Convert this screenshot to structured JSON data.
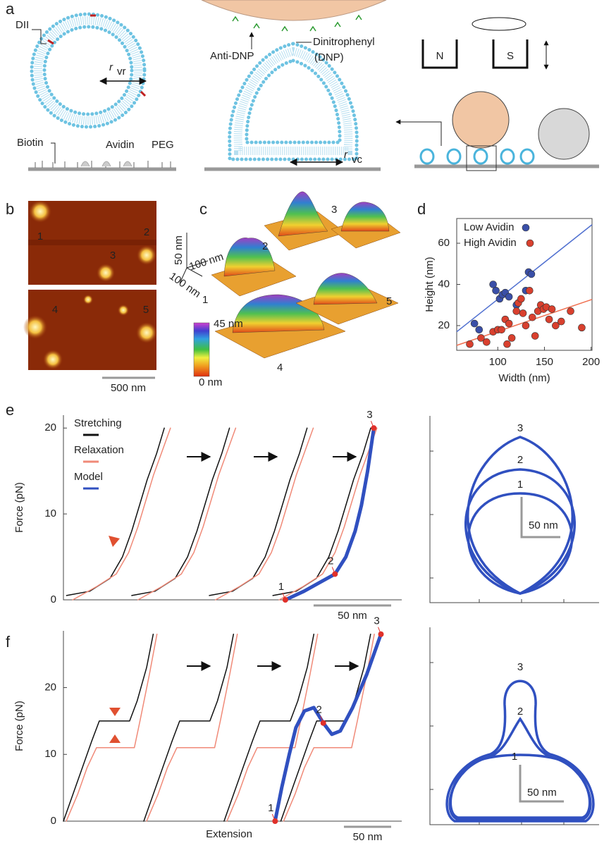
{
  "panel_labels": [
    "a",
    "b",
    "c",
    "d",
    "e",
    "f"
  ],
  "schematic": {
    "dii": "DII",
    "r_vr": "r",
    "r_vr_sub": "vr",
    "biotin": "Biotin",
    "avidin": "Avidin",
    "peg": "PEG",
    "anti_dnp": "Anti-DNP",
    "dinitrophenyl": "Dinitrophenyl",
    "dnp": "(DNP)",
    "r_vc": "r",
    "r_vc_sub": "vc",
    "magnet_n": "N",
    "magnet_s": "S"
  },
  "afm_images": {
    "labels": [
      "1",
      "2",
      "3",
      "4",
      "5"
    ],
    "scale_bar": "500 nm"
  },
  "surface_plot": {
    "z_scale": "50 nm",
    "xy_scale_1": "100 nm",
    "xy_scale_2": "100 nm",
    "labels": [
      "1",
      "2",
      "3",
      "4",
      "5"
    ],
    "colorbar_max": "45 nm",
    "colorbar_min": "0 nm"
  },
  "chart_data": [
    {
      "type": "scatter",
      "xlabel": "Width (nm)",
      "ylabel": "Height (nm)",
      "xlim": [
        56,
        201
      ],
      "ylim": [
        8,
        72
      ],
      "xticks": [
        100,
        150,
        200
      ],
      "yticks": [
        20,
        40,
        60
      ],
      "series": [
        {
          "name": "Low Avidin",
          "color": "#3a4fa8",
          "x": [
            75,
            80,
            95,
            98,
            102,
            105,
            108,
            112,
            120,
            130,
            133,
            136
          ],
          "values": [
            21,
            18,
            40,
            37,
            33,
            35,
            36,
            34,
            30,
            37,
            46,
            45
          ]
        },
        {
          "name": "High Avidin",
          "color": "#d9402e",
          "x": [
            70,
            82,
            88,
            95,
            100,
            104,
            108,
            112,
            115,
            120,
            122,
            127,
            130,
            134,
            137,
            140,
            143,
            146,
            149,
            152,
            155,
            158,
            162,
            168,
            178,
            190,
            110,
            125
          ],
          "values": [
            11,
            14,
            12,
            17,
            18,
            18,
            23,
            21,
            14,
            27,
            31,
            26,
            20,
            37,
            24,
            15,
            27,
            30,
            28,
            29,
            23,
            28,
            20,
            22,
            27,
            19,
            11,
            33
          ]
        }
      ],
      "fit_lines": [
        {
          "color": "#5070d0",
          "x": [
            56,
            201
          ],
          "values": [
            17,
            69
          ]
        },
        {
          "color": "#f07050",
          "x": [
            56,
            201
          ],
          "values": [
            10.4,
            32.7
          ]
        }
      ]
    },
    {
      "type": "line",
      "ylabel": "Force (pN)",
      "ylim": [
        0,
        21.5
      ],
      "yticks": [
        0,
        10,
        20
      ],
      "xlim": [
        0,
        218
      ],
      "series": [
        {
          "name": "Stretching",
          "color": "#111111",
          "width": 1.5,
          "x": [
            2,
            17,
            30,
            38,
            44,
            49,
            54,
            60,
            65,
            null,
            44,
            59,
            72,
            80,
            86,
            91,
            96,
            102,
            107,
            null,
            94,
            109,
            122,
            130,
            136,
            141,
            146,
            152,
            157,
            null,
            135,
            150,
            163,
            171,
            177,
            182,
            187,
            193,
            198
          ],
          "values": [
            0.5,
            1,
            2.5,
            5,
            8,
            11,
            14,
            17,
            20,
            null,
            0.5,
            1,
            2.5,
            5,
            8,
            11,
            14,
            17,
            20,
            null,
            0.5,
            1,
            2.5,
            5,
            8,
            11,
            14,
            17,
            20,
            null,
            0.5,
            1,
            2.5,
            5,
            8,
            11,
            14,
            17,
            20
          ]
        },
        {
          "name": "Relaxation",
          "color": "#f08a78",
          "width": 1.5,
          "x": [
            6,
            21,
            34,
            42,
            48,
            53,
            58,
            64,
            69,
            null,
            48,
            63,
            76,
            84,
            90,
            95,
            100,
            106,
            111,
            null,
            98,
            113,
            126,
            134,
            140,
            145,
            150,
            156,
            161,
            null,
            139,
            154,
            167,
            175,
            181,
            186,
            191,
            197,
            202
          ],
          "values": [
            0,
            1.5,
            3,
            5.5,
            8.5,
            11.5,
            14.5,
            17.5,
            20,
            null,
            0,
            1.5,
            3,
            5.5,
            8.5,
            11.5,
            14.5,
            17.5,
            20,
            null,
            0,
            1.5,
            3,
            5.5,
            8.5,
            11.5,
            14.5,
            17.5,
            20,
            null,
            0,
            1.5,
            3,
            5.5,
            8.5,
            11.5,
            14.5,
            17.5,
            20
          ]
        },
        {
          "name": "Model",
          "color": "#3050c0",
          "width": 5,
          "x": [
            143,
            155,
            165,
            175,
            182,
            188,
            192,
            196,
            200
          ],
          "values": [
            0,
            1,
            2,
            3,
            5,
            8,
            11,
            15,
            20
          ]
        }
      ],
      "points": {
        "x": [
          143,
          175,
          200
        ],
        "values": [
          0,
          3,
          20
        ],
        "labels": [
          "1",
          "2",
          "3"
        ],
        "color": "#e0302a"
      },
      "scale_bar": {
        "length": 50,
        "label": "50 nm"
      }
    },
    {
      "type": "line",
      "ylabel": "Force (pN)",
      "xlabel": "Extension",
      "ylim": [
        0,
        28.5
      ],
      "yticks": [
        0,
        10,
        20
      ],
      "xlim": [
        0,
        358
      ],
      "series": [
        {
          "color": "#111111",
          "width": 1.5,
          "x": [
            0,
            10,
            20,
            30,
            38,
            70,
            78,
            88,
            95,
            null,
            85,
            95,
            105,
            115,
            123,
            155,
            163,
            173,
            180,
            null,
            170,
            180,
            190,
            200,
            208,
            240,
            248,
            258,
            265,
            null,
            230,
            240,
            250,
            260,
            268,
            300,
            308,
            318,
            325
          ],
          "values": [
            0,
            4,
            8,
            12,
            15,
            15,
            18,
            23,
            28,
            null,
            0,
            4,
            8,
            12,
            15,
            15,
            18,
            23,
            28,
            null,
            0,
            4,
            8,
            12,
            15,
            15,
            18,
            23,
            28,
            null,
            0,
            4,
            8,
            12,
            15,
            15,
            18,
            23,
            28
          ]
        },
        {
          "color": "#f08a78",
          "width": 1.5,
          "x": [
            3,
            15,
            25,
            35,
            43,
            75,
            81,
            91,
            99,
            null,
            88,
            100,
            110,
            120,
            128,
            160,
            166,
            176,
            184,
            null,
            173,
            185,
            195,
            205,
            213,
            245,
            251,
            261,
            269,
            null,
            233,
            245,
            255,
            265,
            273,
            305,
            311,
            321,
            329
          ],
          "values": [
            0,
            4,
            8,
            11,
            11,
            11,
            15,
            22,
            28,
            null,
            0,
            4,
            8,
            11,
            11,
            11,
            15,
            22,
            28,
            null,
            0,
            4,
            8,
            11,
            11,
            11,
            15,
            22,
            28,
            null,
            0,
            4,
            8,
            11,
            11,
            11,
            15,
            22,
            28
          ]
        },
        {
          "color": "#3050c0",
          "width": 5,
          "x": [
            224,
            231,
            239,
            246,
            255,
            265,
            275,
            284,
            293,
            306,
            321,
            336
          ],
          "values": [
            0,
            5,
            10,
            14,
            16.5,
            17,
            14.7,
            13,
            13.5,
            17,
            22,
            28
          ]
        }
      ],
      "points": {
        "x": [
          224,
          275,
          336
        ],
        "values": [
          0,
          14.7,
          28
        ],
        "labels": [
          "1",
          "2",
          "3"
        ],
        "color": "#e0302a"
      },
      "scale_bar": {
        "length": 50,
        "label": "50 nm"
      }
    }
  ],
  "shapes_e": {
    "labels": [
      "1",
      "2",
      "3"
    ],
    "scale_bar": "50 nm"
  },
  "shapes_f": {
    "labels": [
      "1",
      "2",
      "3"
    ],
    "scale_bar": "50 nm"
  }
}
